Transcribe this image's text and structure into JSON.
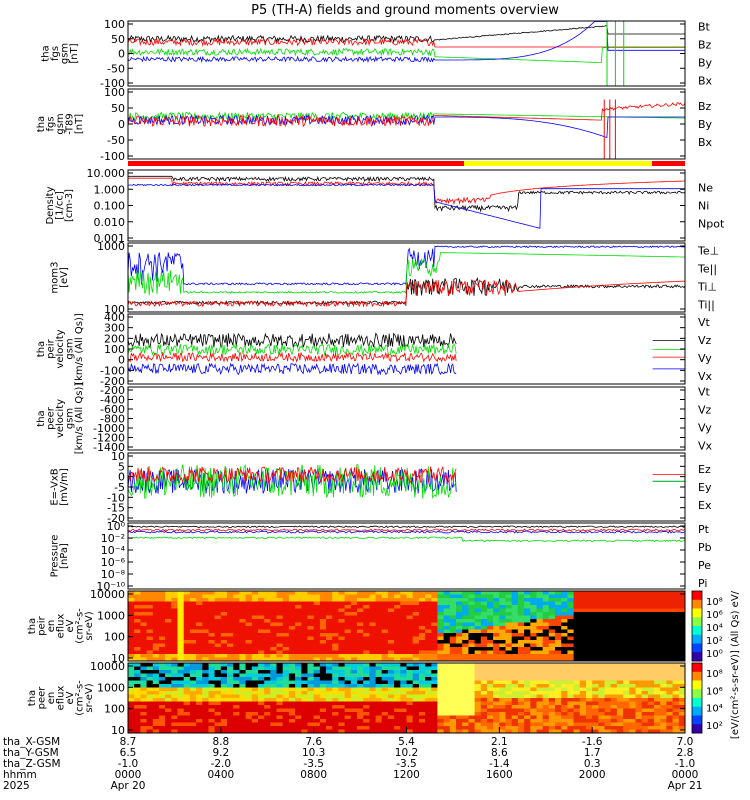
{
  "title": "P5 (TH-A) fields and ground moments overview",
  "colors": {
    "black": "#000000",
    "red": "#ff0000",
    "green": "#00dd00",
    "blue": "#0000ff",
    "yellow": "#ffff00",
    "lightgreen": "#90ee44"
  },
  "chart_data": [
    {
      "id": "fgs_gse",
      "type": "line",
      "ylabel": [
        "tha",
        "fgs",
        "gsm",
        "[nT]"
      ],
      "yticks": [
        "100",
        "50",
        "0",
        "-50",
        "-100"
      ],
      "ylim": [
        -100,
        100
      ],
      "legend": [
        {
          "label": "Bt",
          "color": "#000000"
        },
        {
          "label": "Bz",
          "color": "#ff0000"
        },
        {
          "label": "By",
          "color": "#00dd00"
        },
        {
          "label": "Bx",
          "color": "#0000ff"
        }
      ]
    },
    {
      "id": "fgs_gsm_dip",
      "type": "line",
      "ylabel": [
        "tha",
        "fgs",
        "gsm",
        "-T89",
        "[nT]"
      ],
      "yticks": [
        "100",
        "50",
        "0",
        "-50",
        "-100"
      ],
      "ylim": [
        -125,
        100
      ],
      "legend": [
        {
          "label": "Bz",
          "color": "#ff0000"
        },
        {
          "label": "By",
          "color": "#00dd00"
        },
        {
          "label": "Bx",
          "color": "#0000ff"
        }
      ]
    },
    {
      "id": "density",
      "type": "line",
      "ylabel": [
        "Density",
        "[1/cc]",
        "[cm-3]"
      ],
      "yticks": [
        "10.000",
        "1.000",
        "0.100",
        "0.010",
        "0.001"
      ],
      "legend": [
        {
          "label": "Ne",
          "color": "#ff0000"
        },
        {
          "label": "Ni",
          "color": "#000000"
        },
        {
          "label": "Npot",
          "color": "#0000ff"
        }
      ]
    },
    {
      "id": "temperature",
      "type": "line",
      "ylabel": [
        "mom3",
        "[eV]"
      ],
      "yticks": [
        "1000",
        "100"
      ],
      "legend": [
        {
          "label": "Te⊥",
          "color": "#ff0000"
        },
        {
          "label": "Te||",
          "color": "#000000"
        },
        {
          "label": "Ti⊥",
          "color": "#ff0000"
        },
        {
          "label": "Ti||",
          "color": "#90ee44"
        }
      ]
    },
    {
      "id": "peir_velocity",
      "type": "line",
      "ylabel": [
        "tha",
        "peir",
        "velocity",
        "gsm",
        "[km/s (All Qs)]"
      ],
      "yticks": [
        "400",
        "300",
        "200",
        "100",
        "0",
        "-100",
        "-200"
      ],
      "ylim": [
        -250,
        400
      ],
      "legend": [
        {
          "label": "Vt",
          "color": "#000000"
        },
        {
          "label": "Vz",
          "color": "#ff0000"
        },
        {
          "label": "Vy",
          "color": "#00dd00"
        },
        {
          "label": "Vx",
          "color": "#0000ff"
        }
      ]
    },
    {
      "id": "peer_velocity",
      "type": "line",
      "ylabel": [
        "tha",
        "peer",
        "velocity",
        "gsm",
        "[km/s (All Qs)]"
      ],
      "yticks": [
        "-200",
        "-400",
        "-600",
        "-800",
        "-1000",
        "-1200",
        "-1400"
      ],
      "legend": [
        {
          "label": "Vt",
          "color": "#000000"
        },
        {
          "label": "Vz",
          "color": "#ff0000"
        },
        {
          "label": "Vy",
          "color": "#00dd00"
        },
        {
          "label": "Vx",
          "color": "#0000ff"
        }
      ]
    },
    {
      "id": "efield",
      "type": "line",
      "ylabel": [
        "E=-VxB",
        "[mV/m]"
      ],
      "yticks": [
        "10",
        "5",
        "0",
        "-5",
        "-10",
        "-15",
        "-20"
      ],
      "ylim": [
        -20,
        10
      ],
      "legend": [
        {
          "label": "Ez",
          "color": "#ff0000"
        },
        {
          "label": "Ey",
          "color": "#00dd00"
        },
        {
          "label": "Ex",
          "color": "#0000ff"
        }
      ]
    },
    {
      "id": "pressure",
      "type": "line",
      "ylabel": [
        "Pressure",
        "[nPa]"
      ],
      "yticks": [
        "10⁰",
        "10⁻²",
        "10⁻⁴",
        "10⁻⁶",
        "10⁻⁸",
        "10⁻¹⁰"
      ],
      "legend": [
        {
          "label": "Pt",
          "color": "#000000"
        },
        {
          "label": "Pb",
          "color": "#ff0000"
        },
        {
          "label": "Pe",
          "color": "#00dd00"
        },
        {
          "label": "Pi",
          "color": "#0000ff"
        }
      ]
    },
    {
      "id": "peir_spec",
      "type": "heatmap",
      "ylabel": [
        "tha",
        "peir",
        "en",
        "eflux",
        "eV",
        "(cm²-s-",
        "sr-eV)"
      ],
      "yticks": [
        "10000",
        "1000",
        "100",
        "10"
      ],
      "colorbar_ticks": [
        "10⁸",
        "10⁶",
        "10⁴",
        "10²",
        "10⁰"
      ]
    },
    {
      "id": "peer_spec",
      "type": "heatmap",
      "ylabel": [
        "tha",
        "peer",
        "en",
        "eflux",
        "eV",
        "(cm²-s-",
        "sr-eV)"
      ],
      "yticks": [
        "10000",
        "1000",
        "100",
        "10"
      ],
      "colorbar_ticks": [
        "10⁸",
        "10⁶",
        "10⁴",
        "10²"
      ]
    }
  ],
  "colorbar_label": "[eV/(cm²-s-sr-eV)] (All Qs) eV/",
  "xaxis": {
    "row_labels": [
      "tha_X-GSM",
      "tha_Y-GSM",
      "tha_Z-GSM",
      "hhmm",
      "2025"
    ],
    "ticks": [
      {
        "x": "8.7",
        "y": "6.5",
        "z": "-1.0",
        "hhmm": "0000",
        "date": "Apr 20"
      },
      {
        "x": "8.8",
        "y": "9.2",
        "z": "-2.0",
        "hhmm": "0400",
        "date": ""
      },
      {
        "x": "7.6",
        "y": "10.3",
        "z": "-3.5",
        "hhmm": "0800",
        "date": ""
      },
      {
        "x": "5.4",
        "y": "10.2",
        "z": "-3.5",
        "hhmm": "1200",
        "date": ""
      },
      {
        "x": "2.1",
        "y": "8.6",
        "z": "-1.4",
        "hhmm": "1600",
        "date": ""
      },
      {
        "x": "-1.6",
        "y": "1.7",
        "z": "0.3",
        "hhmm": "2000",
        "date": ""
      },
      {
        "x": "7.0",
        "y": "2.8",
        "z": "-1.0",
        "hhmm": "0000",
        "date": "Apr 21"
      }
    ]
  }
}
